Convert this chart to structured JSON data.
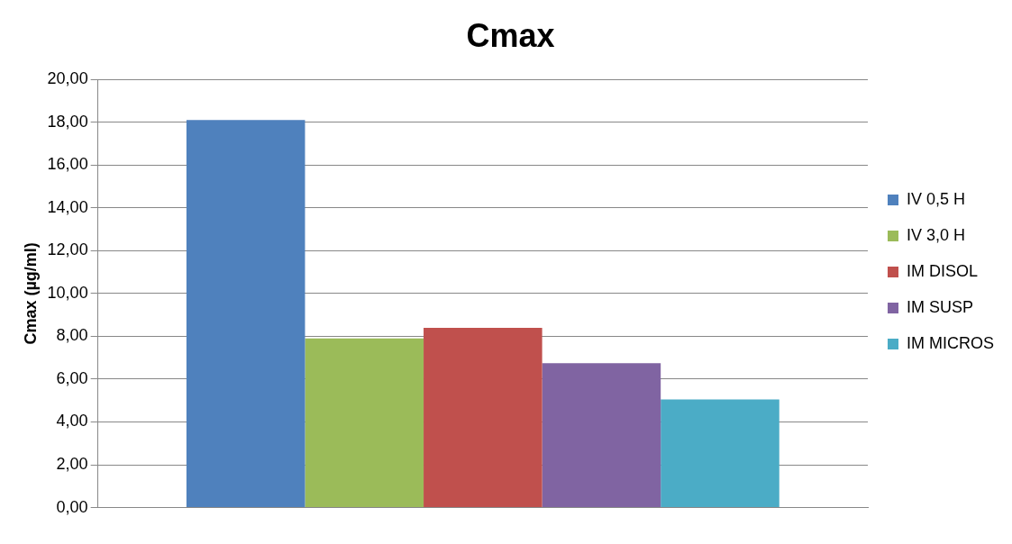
{
  "chart_data": {
    "type": "bar",
    "title": "Cmax",
    "ylabel": "Cmax (µg/ml)",
    "categories": [
      null
    ],
    "series": [
      {
        "name": "IV 0,5 H",
        "color": "#4f81bd",
        "values": [
          18.1
        ]
      },
      {
        "name": "IV 3,0 H",
        "color": "#9bbb59",
        "values": [
          7.9
        ]
      },
      {
        "name": "IM DISOL",
        "color": "#c0504d",
        "values": [
          8.4
        ]
      },
      {
        "name": "IM SUSP",
        "color": "#8064a2",
        "values": [
          6.75
        ]
      },
      {
        "name": "IM MICROS",
        "color": "#4bacc6",
        "values": [
          5.05
        ]
      }
    ],
    "ylim": [
      0,
      20
    ],
    "yticks": [
      {
        "value": 0,
        "label": "0,00"
      },
      {
        "value": 2,
        "label": "2,00"
      },
      {
        "value": 4,
        "label": "4,00"
      },
      {
        "value": 6,
        "label": "6,00"
      },
      {
        "value": 8,
        "label": "8,00"
      },
      {
        "value": 10,
        "label": "10,00"
      },
      {
        "value": 12,
        "label": "12,00"
      },
      {
        "value": 14,
        "label": "14,00"
      },
      {
        "value": 16,
        "label": "16,00"
      },
      {
        "value": 18,
        "label": "18,00"
      },
      {
        "value": 20,
        "label": "20,00"
      }
    ],
    "grid": "y",
    "legend": "right"
  }
}
